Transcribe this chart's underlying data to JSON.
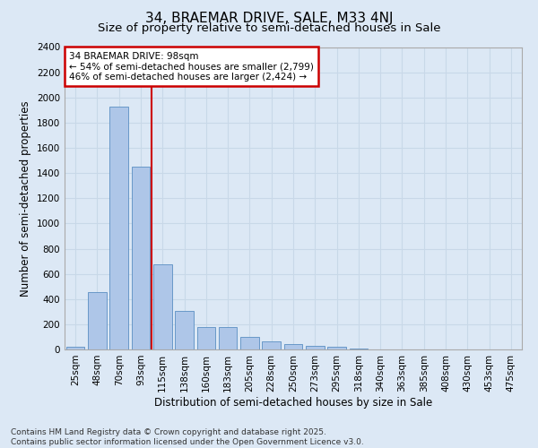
{
  "title": "34, BRAEMAR DRIVE, SALE, M33 4NJ",
  "subtitle": "Size of property relative to semi-detached houses in Sale",
  "xlabel": "Distribution of semi-detached houses by size in Sale",
  "ylabel": "Number of semi-detached properties",
  "categories": [
    "25sqm",
    "48sqm",
    "70sqm",
    "93sqm",
    "115sqm",
    "138sqm",
    "160sqm",
    "183sqm",
    "205sqm",
    "228sqm",
    "250sqm",
    "273sqm",
    "295sqm",
    "318sqm",
    "340sqm",
    "363sqm",
    "385sqm",
    "408sqm",
    "430sqm",
    "453sqm",
    "475sqm"
  ],
  "values": [
    22,
    455,
    1930,
    1450,
    675,
    305,
    180,
    180,
    100,
    62,
    40,
    32,
    18,
    5,
    2,
    0,
    0,
    0,
    0,
    0,
    0
  ],
  "bar_color": "#aec6e8",
  "bar_edge_color": "#5a8fc2",
  "grid_color": "#c8d8e8",
  "background_color": "#dce8f5",
  "vline_x_index": 3,
  "vline_color": "#cc0000",
  "annotation_title": "34 BRAEMAR DRIVE: 98sqm",
  "annotation_line1": "← 54% of semi-detached houses are smaller (2,799)",
  "annotation_line2": "46% of semi-detached houses are larger (2,424) →",
  "annotation_box_color": "#cc0000",
  "ylim": [
    0,
    2400
  ],
  "yticks": [
    0,
    200,
    400,
    600,
    800,
    1000,
    1200,
    1400,
    1600,
    1800,
    2000,
    2200,
    2400
  ],
  "footer_line1": "Contains HM Land Registry data © Crown copyright and database right 2025.",
  "footer_line2": "Contains public sector information licensed under the Open Government Licence v3.0.",
  "title_fontsize": 11,
  "subtitle_fontsize": 9.5,
  "axis_label_fontsize": 8.5,
  "tick_fontsize": 7.5,
  "annotation_fontsize": 7.5,
  "footer_fontsize": 6.5
}
